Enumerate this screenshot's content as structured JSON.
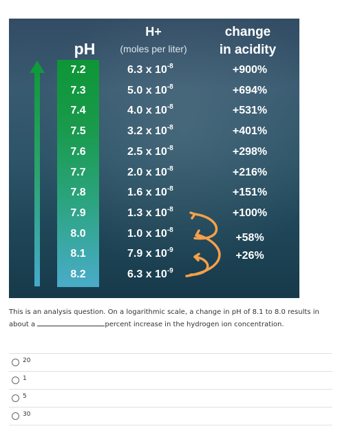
{
  "figure": {
    "headers": {
      "ph": "pH",
      "h_title": "H+",
      "h_subtitle": "(moles per liter)",
      "change_line1": "change",
      "change_line2": "in acidity"
    },
    "rows": [
      {
        "ph": "7.2",
        "h_base": "6.3 x 10",
        "h_exp": "-8",
        "change": "+900%"
      },
      {
        "ph": "7.3",
        "h_base": "5.0 x 10",
        "h_exp": "-8",
        "change": "+694%"
      },
      {
        "ph": "7.4",
        "h_base": "4.0 x 10",
        "h_exp": "-8",
        "change": "+531%"
      },
      {
        "ph": "7.5",
        "h_base": "3.2 x 10",
        "h_exp": "-8",
        "change": "+401%"
      },
      {
        "ph": "7.6",
        "h_base": "2.5 x 10",
        "h_exp": "-8",
        "change": "+298%"
      },
      {
        "ph": "7.7",
        "h_base": "2.0 x 10",
        "h_exp": "-8",
        "change": "+216%"
      },
      {
        "ph": "7.8",
        "h_base": "1.6 x 10",
        "h_exp": "-8",
        "change": "+151%"
      },
      {
        "ph": "7.9",
        "h_base": "1.3 x 10",
        "h_exp": "-8",
        "change": "+100%"
      },
      {
        "ph": "8.0",
        "h_base": "1.0 x 10",
        "h_exp": "-8",
        "change": "+58%"
      },
      {
        "ph": "8.1",
        "h_base": "7.9 x 10",
        "h_exp": "-9",
        "change": "+26%"
      },
      {
        "ph": "8.2",
        "h_base": "6.3 x 10",
        "h_exp": "-9",
        "change": ""
      }
    ],
    "colors": {
      "arrow_green": "#0f9a3c",
      "arrow_blue": "#45aacc",
      "curved_arrows": "#f5a04a"
    }
  },
  "question": {
    "text_before": "This is an analysis question. On a logarithmic scale, a change in pH of 8.1 to 8.0 results in about a",
    "text_after": "percent increase in the hydrogen ion concentration."
  },
  "options": [
    "20",
    "1",
    "5",
    "30"
  ]
}
